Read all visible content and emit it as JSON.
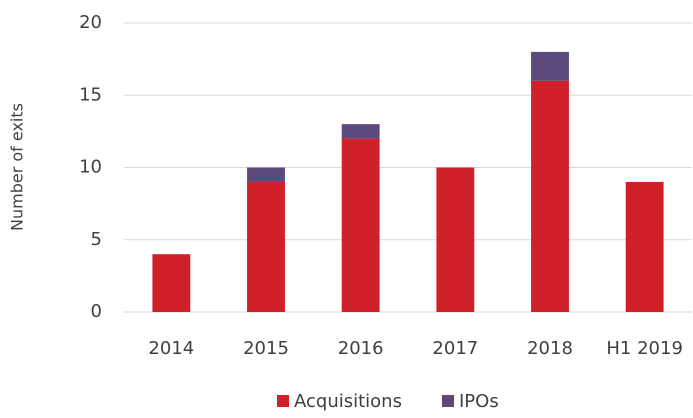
{
  "chart_data": {
    "type": "stacked_bar",
    "y_label": "Number of exits",
    "categories": [
      "2014",
      "2015",
      "2016",
      "2017",
      "2018",
      "H1 2019"
    ],
    "series": [
      {
        "name": "Acquisitions",
        "color": "#d0202a",
        "values": [
          4,
          9,
          12,
          10,
          16,
          9
        ]
      },
      {
        "name": "IPOs",
        "color": "#5b4a7b",
        "values": [
          0,
          1,
          1,
          0,
          2,
          0
        ]
      }
    ],
    "ylim": [
      0,
      20
    ],
    "yticks": [
      0,
      5,
      10,
      15,
      20
    ],
    "grid": true,
    "legend": "bottom"
  }
}
